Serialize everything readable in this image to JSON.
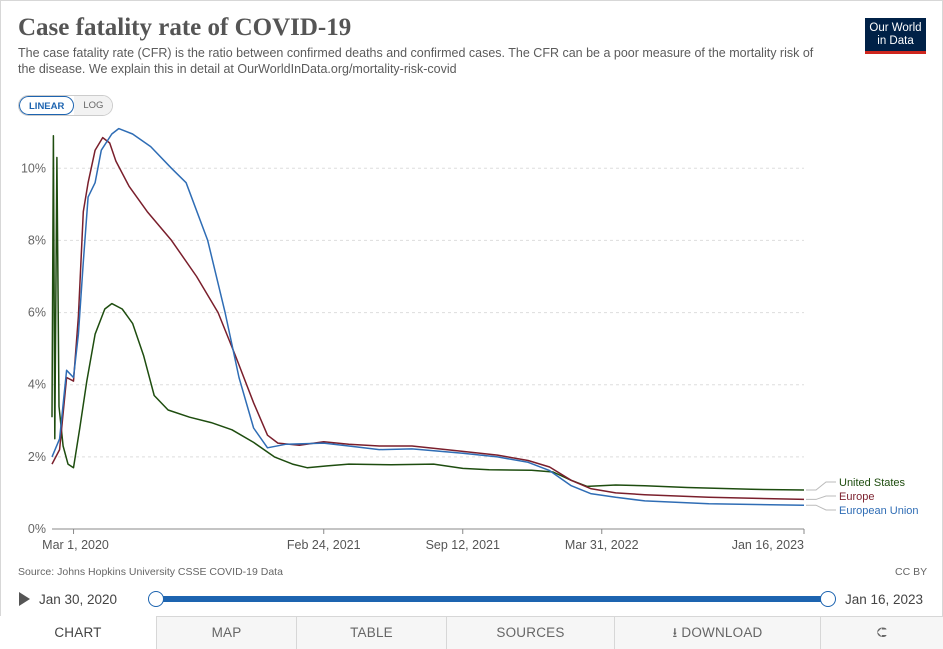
{
  "header": {
    "title": "Case fatality rate of COVID-19",
    "subtitle": "The case fatality rate (CFR) is the ratio between confirmed deaths and confirmed cases. The CFR can be a poor measure of the mortality risk of the disease. We explain this in detail at OurWorldInData.org/mortality-risk-covid",
    "logo_line1": "Our World",
    "logo_line2": "in Data"
  },
  "scale_toggle": {
    "linear_label": "LINEAR",
    "log_label": "LOG",
    "selected": "LINEAR"
  },
  "footer": {
    "source": "Source: Johns Hopkins University CSSE COVID-19 Data",
    "license": "CC BY"
  },
  "timeline": {
    "start_label": "Jan 30, 2020",
    "end_label": "Jan 16, 2023"
  },
  "tabs": [
    {
      "label": "CHART"
    },
    {
      "label": "MAP"
    },
    {
      "label": "TABLE"
    },
    {
      "label": "SOURCES"
    },
    {
      "label": "DOWNLOAD"
    }
  ],
  "colors": {
    "united_states": "#1e4d0f",
    "europe": "#7a1f2c",
    "european_union": "#2f6db5",
    "accent": "#1d64b0"
  },
  "chart_data": {
    "type": "line",
    "xaxis": {
      "type": "date",
      "range": [
        "2020-01-30",
        "2023-01-16"
      ],
      "tick_dates": [
        "2020-03-01",
        "2021-02-24",
        "2021-09-12",
        "2022-03-31",
        "2023-01-16"
      ],
      "tick_labels": [
        "Mar 1, 2020",
        "Feb 24, 2021",
        "Sep 12, 2021",
        "Mar 31, 2022",
        "Jan 16, 2023"
      ]
    },
    "yaxis": {
      "range": [
        0,
        11.2
      ],
      "ticks": [
        0,
        2,
        4,
        6,
        8,
        10
      ],
      "tick_labels": [
        "0%",
        "2%",
        "4%",
        "6%",
        "8%",
        "10%"
      ],
      "unit": "%"
    },
    "grid": "horizontal-dashed",
    "legend": "right-inline",
    "series": [
      {
        "name": "United States",
        "color_key": "united_states",
        "points": [
          [
            "2020-01-30",
            3.1
          ],
          [
            "2020-02-01",
            10.9
          ],
          [
            "2020-02-03",
            2.5
          ],
          [
            "2020-02-06",
            10.3
          ],
          [
            "2020-02-09",
            3.4
          ],
          [
            "2020-02-15",
            2.3
          ],
          [
            "2020-02-22",
            1.8
          ],
          [
            "2020-03-01",
            1.7
          ],
          [
            "2020-03-10",
            2.8
          ],
          [
            "2020-03-20",
            4.1
          ],
          [
            "2020-04-01",
            5.4
          ],
          [
            "2020-04-15",
            6.1
          ],
          [
            "2020-04-25",
            6.25
          ],
          [
            "2020-05-10",
            6.1
          ],
          [
            "2020-05-25",
            5.7
          ],
          [
            "2020-06-10",
            4.8
          ],
          [
            "2020-06-25",
            3.7
          ],
          [
            "2020-07-15",
            3.3
          ],
          [
            "2020-08-15",
            3.1
          ],
          [
            "2020-09-15",
            2.95
          ],
          [
            "2020-10-15",
            2.75
          ],
          [
            "2020-11-15",
            2.4
          ],
          [
            "2020-12-15",
            2.0
          ],
          [
            "2021-01-10",
            1.8
          ],
          [
            "2021-01-31",
            1.7
          ],
          [
            "2021-03-01",
            1.75
          ],
          [
            "2021-04-01",
            1.8
          ],
          [
            "2021-06-01",
            1.78
          ],
          [
            "2021-08-01",
            1.8
          ],
          [
            "2021-09-12",
            1.68
          ],
          [
            "2021-10-20",
            1.64
          ],
          [
            "2021-12-20",
            1.63
          ],
          [
            "2022-01-20",
            1.58
          ],
          [
            "2022-02-15",
            1.35
          ],
          [
            "2022-03-10",
            1.18
          ],
          [
            "2022-04-20",
            1.22
          ],
          [
            "2022-06-01",
            1.2
          ],
          [
            "2022-08-01",
            1.15
          ],
          [
            "2022-11-01",
            1.1
          ],
          [
            "2023-01-16",
            1.08
          ]
        ]
      },
      {
        "name": "Europe",
        "color_key": "europe",
        "points": [
          [
            "2020-01-30",
            1.8
          ],
          [
            "2020-02-10",
            2.2
          ],
          [
            "2020-02-20",
            4.2
          ],
          [
            "2020-03-01",
            4.1
          ],
          [
            "2020-03-08",
            5.9
          ],
          [
            "2020-03-15",
            8.8
          ],
          [
            "2020-03-22",
            9.6
          ],
          [
            "2020-04-01",
            10.5
          ],
          [
            "2020-04-12",
            10.85
          ],
          [
            "2020-04-22",
            10.7
          ],
          [
            "2020-05-01",
            10.2
          ],
          [
            "2020-05-20",
            9.5
          ],
          [
            "2020-06-15",
            8.8
          ],
          [
            "2020-07-20",
            8.0
          ],
          [
            "2020-08-25",
            7.0
          ],
          [
            "2020-09-25",
            6.0
          ],
          [
            "2020-10-20",
            4.8
          ],
          [
            "2020-11-15",
            3.5
          ],
          [
            "2020-12-05",
            2.6
          ],
          [
            "2020-12-20",
            2.38
          ],
          [
            "2021-01-20",
            2.32
          ],
          [
            "2021-02-24",
            2.42
          ],
          [
            "2021-04-01",
            2.35
          ],
          [
            "2021-05-15",
            2.3
          ],
          [
            "2021-07-01",
            2.3
          ],
          [
            "2021-09-12",
            2.15
          ],
          [
            "2021-11-01",
            2.05
          ],
          [
            "2021-12-15",
            1.9
          ],
          [
            "2022-01-15",
            1.72
          ],
          [
            "2022-02-15",
            1.35
          ],
          [
            "2022-03-15",
            1.12
          ],
          [
            "2022-04-20",
            1.0
          ],
          [
            "2022-06-01",
            0.95
          ],
          [
            "2022-09-01",
            0.88
          ],
          [
            "2023-01-16",
            0.82
          ]
        ]
      },
      {
        "name": "European Union",
        "color_key": "european_union",
        "points": [
          [
            "2020-01-30",
            2.0
          ],
          [
            "2020-02-10",
            2.5
          ],
          [
            "2020-02-20",
            4.4
          ],
          [
            "2020-03-01",
            4.2
          ],
          [
            "2020-03-08",
            5.4
          ],
          [
            "2020-03-15",
            7.4
          ],
          [
            "2020-03-22",
            9.2
          ],
          [
            "2020-04-01",
            9.6
          ],
          [
            "2020-04-10",
            10.5
          ],
          [
            "2020-04-25",
            10.95
          ],
          [
            "2020-05-05",
            11.1
          ],
          [
            "2020-05-25",
            10.95
          ],
          [
            "2020-06-20",
            10.6
          ],
          [
            "2020-07-20",
            10.0
          ],
          [
            "2020-08-10",
            9.6
          ],
          [
            "2020-09-10",
            8.0
          ],
          [
            "2020-10-05",
            6.0
          ],
          [
            "2020-10-25",
            4.2
          ],
          [
            "2020-11-15",
            2.8
          ],
          [
            "2020-12-05",
            2.25
          ],
          [
            "2021-01-01",
            2.35
          ],
          [
            "2021-02-24",
            2.38
          ],
          [
            "2021-04-01",
            2.3
          ],
          [
            "2021-05-15",
            2.2
          ],
          [
            "2021-07-01",
            2.22
          ],
          [
            "2021-09-12",
            2.1
          ],
          [
            "2021-11-01",
            2.0
          ],
          [
            "2021-12-15",
            1.85
          ],
          [
            "2022-01-15",
            1.62
          ],
          [
            "2022-02-15",
            1.2
          ],
          [
            "2022-03-15",
            0.98
          ],
          [
            "2022-04-20",
            0.88
          ],
          [
            "2022-06-01",
            0.78
          ],
          [
            "2022-09-01",
            0.7
          ],
          [
            "2023-01-16",
            0.66
          ]
        ]
      }
    ]
  }
}
